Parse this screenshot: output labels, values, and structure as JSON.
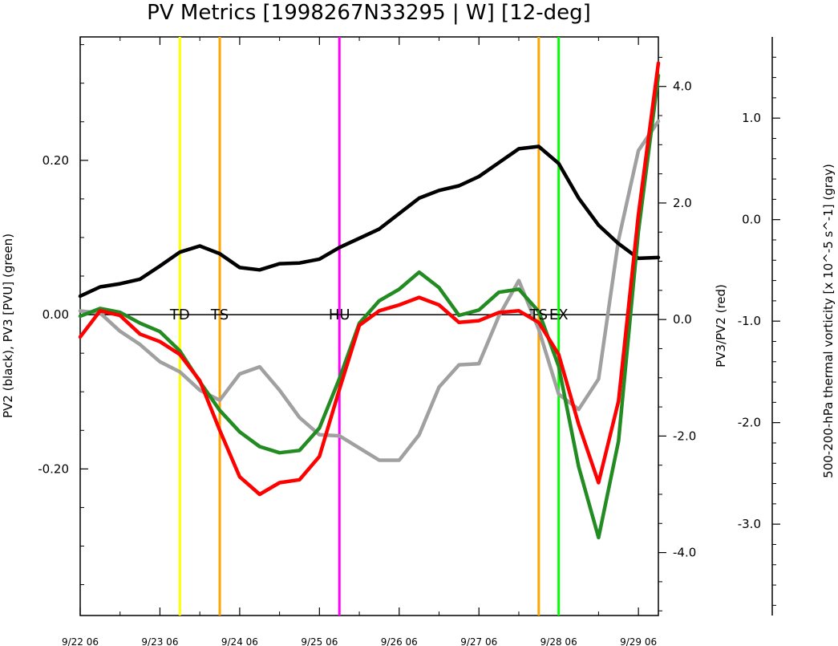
{
  "chart_data": {
    "type": "line",
    "title": "PV Metrics [1998267N33295 | W] [12-deg]",
    "xlabel": "",
    "x_ticks": [
      "9/22 06",
      "9/23 06",
      "9/24 06",
      "9/25 06",
      "9/26 06",
      "9/27 06",
      "9/28 06",
      "9/29 06"
    ],
    "x": [
      0,
      0.25,
      0.5,
      0.75,
      1,
      1.25,
      1.5,
      1.75,
      2,
      2.25,
      2.5,
      2.75,
      3,
      3.25,
      3.5,
      3.75,
      4,
      4.25,
      4.5,
      4.75,
      5,
      5.25,
      5.5,
      5.75,
      6,
      6.25,
      6.5,
      6.75,
      7,
      7.25
    ],
    "xlim": [
      0,
      7.25
    ],
    "left_axis": {
      "label": "PV2 (black), PV3 [PVU] (green)",
      "ylim": [
        -0.39,
        0.36
      ],
      "ticks": [
        0.2,
        0.0,
        -0.2
      ],
      "tick_labels": [
        "0.20",
        "0.00",
        "-0.20"
      ]
    },
    "right_axis_1": {
      "label": "PV3/PV2 (red)",
      "ylim": [
        -5.08,
        4.85
      ],
      "ticks": [
        4.0,
        2.0,
        0.0,
        -2.0,
        -4.0
      ],
      "tick_labels": [
        "4.0",
        "2.0",
        "0.0",
        "-2.0",
        "-4.0"
      ]
    },
    "right_axis_2": {
      "label": "500-200-hPa thermal vorticity [x 10^-5 s^-1] (gray)",
      "ylim": [
        -3.9,
        1.8
      ],
      "ticks": [
        1.0,
        0.0,
        -1.0,
        -2.0,
        -3.0
      ],
      "tick_labels": [
        "1.0",
        "0.0",
        "-1.0",
        "-2.0",
        "-3.0"
      ]
    },
    "series": [
      {
        "color": "#000000",
        "axis": "left_axis",
        "values": [
          0.024,
          0.036,
          0.04,
          0.046,
          0.063,
          0.081,
          0.089,
          0.079,
          0.061,
          0.058,
          0.066,
          0.067,
          0.072,
          0.087,
          0.099,
          0.111,
          0.131,
          0.151,
          0.161,
          0.167,
          0.179,
          0.197,
          0.215,
          0.218,
          0.196,
          0.151,
          0.116,
          0.092,
          0.073,
          0.074
        ]
      },
      {
        "color": "#228b22",
        "axis": "left_axis",
        "values": [
          -0.002,
          0.008,
          0.003,
          -0.011,
          -0.022,
          -0.047,
          -0.087,
          -0.124,
          -0.152,
          -0.171,
          -0.179,
          -0.176,
          -0.147,
          -0.083,
          -0.011,
          0.018,
          0.033,
          0.055,
          0.035,
          -0.001,
          0.006,
          0.029,
          0.033,
          0.004,
          -0.067,
          -0.197,
          -0.289,
          -0.164,
          0.108,
          0.31
        ]
      },
      {
        "color": "#ff0000",
        "axis": "right_axis_1",
        "values": [
          -0.3,
          0.15,
          0.07,
          -0.25,
          -0.38,
          -0.6,
          -1.05,
          -1.9,
          -2.7,
          -3.0,
          -2.8,
          -2.75,
          -2.35,
          -1.2,
          -0.1,
          0.15,
          0.25,
          0.38,
          0.25,
          -0.05,
          -0.02,
          0.12,
          0.15,
          -0.05,
          -0.6,
          -1.8,
          -2.8,
          -1.4,
          1.8,
          4.4
        ]
      },
      {
        "color": "#a0a0a0",
        "axis": "right_axis_2",
        "values": [
          -0.9,
          -0.92,
          -1.1,
          -1.23,
          -1.4,
          -1.5,
          -1.68,
          -1.78,
          -1.52,
          -1.45,
          -1.68,
          -1.95,
          -2.12,
          -2.13,
          -2.25,
          -2.37,
          -2.37,
          -2.12,
          -1.65,
          -1.43,
          -1.42,
          -0.95,
          -0.6,
          -1.08,
          -1.72,
          -1.87,
          -1.57,
          -0.2,
          0.68,
          0.97
        ]
      }
    ],
    "stage_markers": [
      {
        "x": 1.25,
        "label": "TD",
        "color": "#ffff00"
      },
      {
        "x": 1.75,
        "label": "TS",
        "color": "#ffa500"
      },
      {
        "x": 3.25,
        "label": "HU",
        "color": "#ff00ff"
      },
      {
        "x": 5.75,
        "label": "TS",
        "color": "#ffa500"
      },
      {
        "x": 6.0,
        "label": "EX",
        "color": "#00ff00"
      }
    ],
    "zero_line": true,
    "grid": false
  }
}
